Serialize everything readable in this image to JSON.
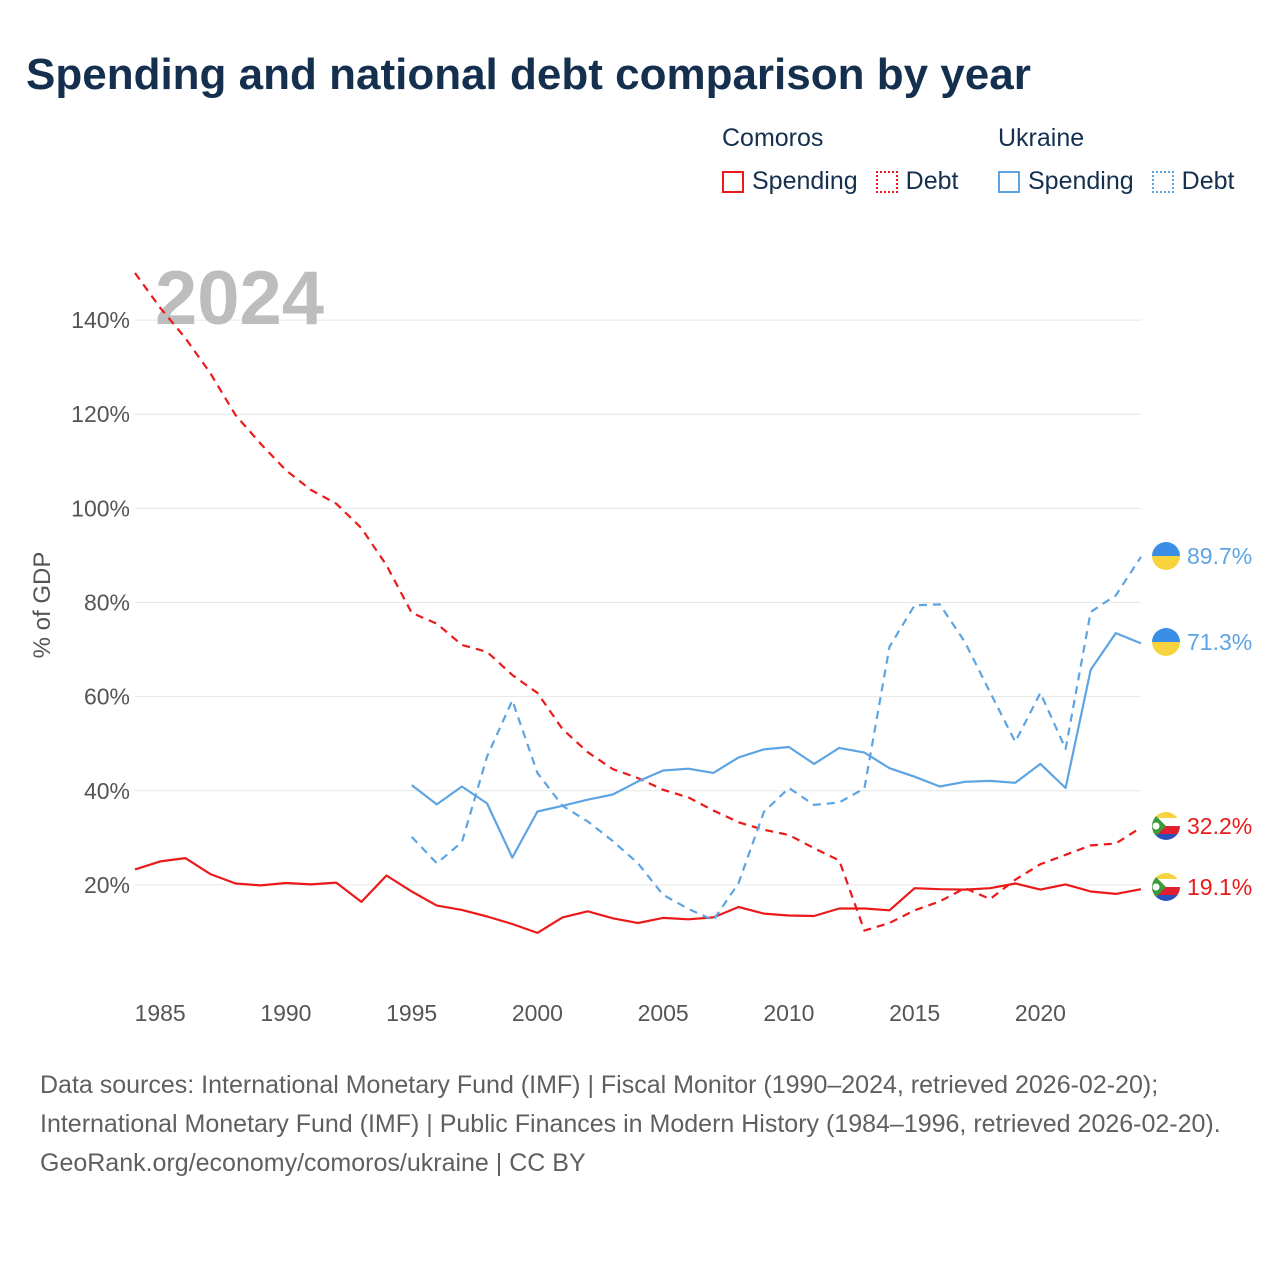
{
  "title": "Spending and national debt comparison by year",
  "legend": {
    "groups": [
      {
        "name": "Comoros",
        "color": "#ea1a1a",
        "items": [
          {
            "label": "Spending",
            "style": "solid"
          },
          {
            "label": "Debt",
            "style": "dotted"
          }
        ]
      },
      {
        "name": "Ukraine",
        "color": "#5da4e3",
        "items": [
          {
            "label": "Spending",
            "style": "solid"
          },
          {
            "label": "Debt",
            "style": "dotted"
          }
        ]
      }
    ]
  },
  "chart_data": {
    "type": "line",
    "year_label": "2024",
    "ylabel": "% of GDP",
    "xlim": [
      1984,
      2024
    ],
    "ylim": [
      -0.2,
      150
    ],
    "y_ticks": [
      20,
      40,
      60,
      80,
      100,
      120,
      140
    ],
    "y_tick_labels": [
      "20%",
      "40%",
      "60%",
      "80%",
      "100%",
      "120%",
      "140%"
    ],
    "x_ticks": [
      1985,
      1990,
      1995,
      2000,
      2005,
      2010,
      2015,
      2020
    ],
    "x_tick_labels": [
      "1985",
      "1990",
      "1995",
      "2000",
      "2005",
      "2010",
      "2015",
      "2020"
    ],
    "series": [
      {
        "name": "Comoros Spending",
        "country": "Comoros",
        "kind": "spending",
        "color": "#ea1a1a",
        "dash": "solid",
        "x": [
          1984,
          1985,
          1986,
          1987,
          1988,
          1989,
          1990,
          1991,
          1992,
          1993,
          1994,
          1995,
          1996,
          1997,
          1998,
          1999,
          2000,
          2001,
          2002,
          2003,
          2004,
          2005,
          2006,
          2007,
          2008,
          2009,
          2010,
          2011,
          2012,
          2013,
          2014,
          2015,
          2016,
          2017,
          2018,
          2019,
          2020,
          2021,
          2022,
          2023,
          2024
        ],
        "values": [
          23.3,
          25,
          25.7,
          22.3,
          20.3,
          19.9,
          20.4,
          20.1,
          20.5,
          16.4,
          22,
          18.6,
          15.6,
          14.7,
          13.3,
          11.7,
          9.8,
          13.1,
          14.4,
          12.9,
          11.9,
          13,
          12.7,
          13.1,
          15.3,
          13.9,
          13.5,
          13.4,
          15,
          15,
          14.6,
          19.3,
          19.1,
          19,
          19.3,
          20.3,
          19,
          20.1,
          18.6,
          18.1,
          19.1
        ],
        "end_label": "19.1%"
      },
      {
        "name": "Comoros Debt",
        "country": "Comoros",
        "kind": "debt",
        "color": "#ea1a1a",
        "dash": "dashed",
        "x": [
          1984,
          1985,
          1986,
          1987,
          1988,
          1989,
          1990,
          1991,
          1992,
          1993,
          1994,
          1995,
          1996,
          1997,
          1998,
          1999,
          2000,
          2001,
          2002,
          2003,
          2004,
          2005,
          2006,
          2007,
          2008,
          2009,
          2010,
          2011,
          2012,
          2013,
          2014,
          2015,
          2016,
          2017,
          2018,
          2019,
          2020,
          2021,
          2022,
          2023,
          2024
        ],
        "values": [
          150,
          142.6,
          136.2,
          128.7,
          119.8,
          113.7,
          108.1,
          103.9,
          101,
          95.8,
          87.9,
          77.8,
          75.5,
          71,
          69.5,
          64.6,
          60.8,
          53.1,
          48.2,
          44.6,
          42.7,
          40.2,
          38.6,
          35.8,
          33.3,
          31.7,
          30.6,
          27.8,
          25.2,
          10.3,
          11.9,
          14.6,
          16.5,
          19.3,
          17,
          21.1,
          24.4,
          26.4,
          28.4,
          28.8,
          32.2
        ],
        "end_label": "32.2%"
      },
      {
        "name": "Ukraine Spending",
        "country": "Ukraine",
        "kind": "spending",
        "color": "#5da4e3",
        "dash": "solid",
        "x": [
          1995,
          1996,
          1997,
          1998,
          1999,
          2000,
          2001,
          2002,
          2003,
          2004,
          2005,
          2006,
          2007,
          2008,
          2009,
          2010,
          2011,
          2012,
          2013,
          2014,
          2015,
          2016,
          2017,
          2018,
          2019,
          2020,
          2021,
          2022,
          2023,
          2024
        ],
        "values": [
          41.2,
          37.1,
          40.9,
          37.3,
          25.8,
          35.6,
          36.8,
          38.1,
          39.2,
          42,
          44.3,
          44.7,
          43.8,
          47.1,
          48.8,
          49.3,
          45.7,
          49.1,
          48.1,
          44.8,
          43,
          40.9,
          41.9,
          42.1,
          41.7,
          45.7,
          40.6,
          65.7,
          73.5,
          71.3
        ],
        "end_label": "71.3%"
      },
      {
        "name": "Ukraine Debt",
        "country": "Ukraine",
        "kind": "debt",
        "color": "#5da4e3",
        "dash": "dashed",
        "x": [
          1995,
          1996,
          1997,
          1998,
          1999,
          2000,
          2001,
          2002,
          2003,
          2004,
          2005,
          2006,
          2007,
          2008,
          2009,
          2010,
          2011,
          2012,
          2013,
          2014,
          2015,
          2016,
          2017,
          2018,
          2019,
          2020,
          2021,
          2022,
          2023,
          2024
        ],
        "values": [
          30.2,
          24.6,
          29.1,
          47.3,
          59.2,
          43.8,
          36.8,
          33.5,
          29.3,
          24.6,
          17.9,
          14.9,
          12.5,
          20.4,
          35.5,
          40.6,
          37,
          37.5,
          40.5,
          70.6,
          79.4,
          79.6,
          71.6,
          60.9,
          50.4,
          60.8,
          48.9,
          78,
          81.5,
          89.7
        ],
        "end_label": "89.7%"
      }
    ]
  },
  "footer": {
    "sources": "Data sources: International Monetary Fund (IMF) | Fiscal Monitor (1990–2024, retrieved 2026-02-20); International Monetary Fund (IMF) | Public Finances in Modern History (1984–1996, retrieved 2026-02-20).",
    "credit": "GeoRank.org/economy/comoros/ukraine | CC BY"
  }
}
